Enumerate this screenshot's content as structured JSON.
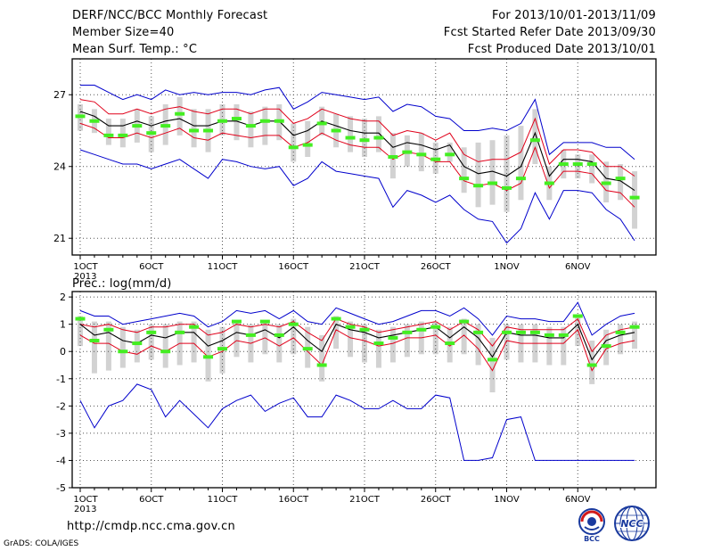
{
  "header": {
    "title": "DERF/NCC/BCC Monthly Forecast",
    "member": "Member Size=40",
    "var1": "Mean Surf. Temp.: °C",
    "period": "For 2013/10/01-2013/11/09",
    "started": "Fcst Started Refer Date 2013/09/30",
    "produced": "Fcst Produced Date 2013/10/01"
  },
  "panel2_title": "Prec.: log(mm/d)",
  "x_ticks": [
    "1OCT",
    "6OCT",
    "11OCT",
    "16OCT",
    "21OCT",
    "26OCT",
    "1NOV",
    "6NOV"
  ],
  "x_year": "2013",
  "footer": {
    "url": "http://cmdp.ncc.cma.gov.cn",
    "credit": "GrADS: COLA/IGES"
  },
  "logos": {
    "left": "BCC",
    "right": "NCC"
  },
  "colors": {
    "blue": "#0000cc",
    "red": "#e0001a",
    "green": "#44ee22",
    "gray": "#d2d2d2",
    "mean": "#000000"
  },
  "chart_data": [
    {
      "type": "line",
      "title": "Mean Surf. Temp.: °C",
      "ylim": [
        20.3,
        28.5
      ],
      "yticks": [
        21,
        24,
        27
      ],
      "days": 39,
      "grid": true,
      "series": [
        {
          "values": [
            26.1,
            25.9,
            25.3,
            25.3,
            25.7,
            25.4,
            25.7,
            26.2,
            25.5,
            25.5,
            25.9,
            26.0,
            25.7,
            25.9,
            25.9,
            24.8,
            24.9,
            25.8,
            25.5,
            25.2,
            25.1,
            25.2,
            24.4,
            24.6,
            24.5,
            24.3,
            24.5,
            23.5,
            23.2,
            23.3,
            23.1,
            23.5,
            25.1,
            23.3,
            24.1,
            24.1,
            24.1,
            23.3,
            23.5,
            22.7
          ]
        },
        {
          "values": [
            27.4,
            27.4,
            27.1,
            26.8,
            27.0,
            26.8,
            27.2,
            27.0,
            27.1,
            27.0,
            27.1,
            27.1,
            27.0,
            27.2,
            27.3,
            26.4,
            26.7,
            27.1,
            27.0,
            26.9,
            26.8,
            26.9,
            26.3,
            26.6,
            26.5,
            26.1,
            26.0,
            25.5,
            25.5,
            25.6,
            25.5,
            25.8,
            26.8,
            24.5,
            25.0,
            25.0,
            25.0,
            24.8,
            24.8,
            24.3
          ]
        },
        {
          "values": [
            24.7,
            24.5,
            24.3,
            24.1,
            24.1,
            23.9,
            24.1,
            24.3,
            23.9,
            23.5,
            24.3,
            24.2,
            24.0,
            23.9,
            24.0,
            23.2,
            23.5,
            24.2,
            23.8,
            23.7,
            23.6,
            23.5,
            22.3,
            23.0,
            22.8,
            22.5,
            22.8,
            22.2,
            21.8,
            21.7,
            20.8,
            21.4,
            22.9,
            21.8,
            23.0,
            23.0,
            22.9,
            22.2,
            21.8,
            20.9
          ]
        },
        {
          "values": [
            26.8,
            26.7,
            26.2,
            26.2,
            26.4,
            26.2,
            26.4,
            26.5,
            26.3,
            26.2,
            26.4,
            26.4,
            26.2,
            26.4,
            26.4,
            25.8,
            26.0,
            26.4,
            26.2,
            26.0,
            25.9,
            25.9,
            25.3,
            25.5,
            25.4,
            25.1,
            25.4,
            24.5,
            24.2,
            24.3,
            24.3,
            24.6,
            26.0,
            24.1,
            24.7,
            24.7,
            24.6,
            24.0,
            24.0,
            23.6
          ]
        },
        {
          "values": [
            25.8,
            25.6,
            25.2,
            25.2,
            25.4,
            25.2,
            25.4,
            25.6,
            25.2,
            25.1,
            25.4,
            25.3,
            25.2,
            25.3,
            25.3,
            24.8,
            25.0,
            25.4,
            25.1,
            24.9,
            24.8,
            24.8,
            24.3,
            24.6,
            24.5,
            24.2,
            24.2,
            23.4,
            23.2,
            23.3,
            23.0,
            23.3,
            24.8,
            23.1,
            23.8,
            23.8,
            23.7,
            23.0,
            22.9,
            22.3
          ]
        },
        {
          "values": [
            26.3,
            26.1,
            25.7,
            25.7,
            25.9,
            25.7,
            25.9,
            26.0,
            25.7,
            25.7,
            25.9,
            25.9,
            25.7,
            25.9,
            25.9,
            25.3,
            25.5,
            25.9,
            25.7,
            25.5,
            25.4,
            25.4,
            24.8,
            25.0,
            24.9,
            24.7,
            24.9,
            24.0,
            23.7,
            23.8,
            23.6,
            24.0,
            25.4,
            23.6,
            24.3,
            24.3,
            24.2,
            23.5,
            23.4,
            23.0
          ]
        },
        {
          "values": [
            25.5,
            25.4,
            24.9,
            24.8,
            25.0,
            24.6,
            24.9,
            25.3,
            24.8,
            24.6,
            25.3,
            25.1,
            24.8,
            24.9,
            25.1,
            24.2,
            24.4,
            25.3,
            24.8,
            24.6,
            24.4,
            24.6,
            23.5,
            24.0,
            23.8,
            23.7,
            24.2,
            22.9,
            22.3,
            22.4,
            22.1,
            22.6,
            24.1,
            22.6,
            23.5,
            23.5,
            23.3,
            22.5,
            22.6,
            21.4
          ]
        },
        {
          "values": [
            26.6,
            26.4,
            26.0,
            26.0,
            26.4,
            26.1,
            26.6,
            26.9,
            26.4,
            26.4,
            26.6,
            26.6,
            26.3,
            26.5,
            26.6,
            25.8,
            25.9,
            26.5,
            26.2,
            26.1,
            26.0,
            26.1,
            25.4,
            25.3,
            25.4,
            25.0,
            25.0,
            24.8,
            25.0,
            25.1,
            25.3,
            25.7,
            26.4,
            24.0,
            24.7,
            24.5,
            24.5,
            24.2,
            24.1,
            23.8
          ]
        }
      ],
      "legend": []
    },
    {
      "type": "line",
      "title": "Prec.: log(mm/d)",
      "ylim": [
        -5,
        2.2
      ],
      "yticks": [
        -5,
        -4,
        -3,
        -2,
        -1,
        0,
        1,
        2
      ],
      "days": 39,
      "grid": true,
      "series": [
        {
          "values": [
            1.2,
            0.4,
            0.8,
            0.0,
            0.3,
            0.7,
            0.0,
            0.7,
            0.9,
            -0.2,
            0.1,
            1.1,
            0.6,
            1.1,
            0.6,
            1.0,
            0.1,
            -0.5,
            1.2,
            0.9,
            0.8,
            0.3,
            0.5,
            0.7,
            0.8,
            0.9,
            0.3,
            1.1,
            0.7,
            -0.3,
            0.7,
            0.7,
            0.7,
            0.6,
            0.6,
            1.3,
            -0.5,
            0.2,
            0.7,
            0.9
          ]
        },
        {
          "values": [
            1.5,
            1.3,
            1.3,
            1.0,
            1.1,
            1.2,
            1.3,
            1.4,
            1.3,
            0.9,
            1.1,
            1.5,
            1.4,
            1.5,
            1.2,
            1.5,
            1.1,
            1.0,
            1.6,
            1.4,
            1.2,
            1.0,
            1.1,
            1.3,
            1.5,
            1.5,
            1.3,
            1.6,
            1.2,
            0.6,
            1.3,
            1.2,
            1.2,
            1.1,
            1.1,
            1.8,
            0.6,
            1.0,
            1.3,
            1.4
          ]
        },
        {
          "values": [
            -1.8,
            -2.8,
            -2.0,
            -1.8,
            -1.2,
            -1.4,
            -2.4,
            -1.8,
            -2.3,
            -2.8,
            -2.1,
            -1.8,
            -1.6,
            -2.2,
            -1.9,
            -1.7,
            -2.4,
            -2.4,
            -1.6,
            -1.8,
            -2.1,
            -2.1,
            -1.8,
            -2.1,
            -2.1,
            -1.6,
            -1.7,
            -4.0,
            -4.0,
            -3.9,
            -2.5,
            -2.4,
            -4.0,
            -4.0,
            -4.0,
            -4.0,
            -4.0,
            -4.0,
            -4.0,
            -4.0
          ]
        },
        {
          "values": [
            1.0,
            0.9,
            1.0,
            0.8,
            0.7,
            0.9,
            0.9,
            1.0,
            1.0,
            0.6,
            0.7,
            1.0,
            0.9,
            1.0,
            0.9,
            1.1,
            0.7,
            0.4,
            1.2,
            1.0,
            0.9,
            0.7,
            0.8,
            0.9,
            1.0,
            1.1,
            0.8,
            1.1,
            0.8,
            0.2,
            0.9,
            0.8,
            0.8,
            0.8,
            0.8,
            1.2,
            0.0,
            0.6,
            0.8,
            0.9
          ]
        },
        {
          "values": [
            0.6,
            0.3,
            0.3,
            0.0,
            -0.1,
            0.2,
            0.0,
            0.3,
            0.3,
            -0.2,
            0.0,
            0.4,
            0.3,
            0.5,
            0.2,
            0.5,
            0.0,
            -0.5,
            0.8,
            0.5,
            0.4,
            0.2,
            0.3,
            0.5,
            0.5,
            0.6,
            0.2,
            0.6,
            0.1,
            -0.7,
            0.4,
            0.3,
            0.3,
            0.3,
            0.3,
            0.8,
            -0.7,
            0.1,
            0.3,
            0.4
          ]
        },
        {
          "values": [
            1.0,
            0.6,
            0.7,
            0.4,
            0.3,
            0.6,
            0.5,
            0.7,
            0.7,
            0.2,
            0.4,
            0.7,
            0.6,
            0.8,
            0.5,
            0.9,
            0.4,
            0.0,
            1.0,
            0.8,
            0.7,
            0.5,
            0.6,
            0.7,
            0.8,
            0.9,
            0.5,
            0.9,
            0.5,
            -0.2,
            0.7,
            0.6,
            0.6,
            0.5,
            0.5,
            1.0,
            -0.3,
            0.4,
            0.6,
            0.7
          ]
        },
        {
          "values": [
            0.2,
            -0.8,
            -0.7,
            -0.6,
            -0.4,
            -0.3,
            -0.6,
            -0.5,
            -0.4,
            -1.1,
            -0.8,
            -0.2,
            -0.4,
            -0.1,
            -0.4,
            -0.1,
            -0.6,
            -1.1,
            0.1,
            -0.2,
            -0.4,
            -0.6,
            -0.4,
            -0.2,
            -0.1,
            -0.1,
            -0.4,
            -0.1,
            -0.5,
            -1.5,
            -0.3,
            -0.4,
            -0.4,
            -0.5,
            -0.5,
            0.2,
            -1.2,
            -0.5,
            -0.1,
            0.1
          ]
        },
        {
          "values": [
            1.3,
            1.1,
            1.1,
            0.9,
            0.8,
            1.0,
            1.0,
            1.1,
            1.1,
            0.8,
            0.9,
            1.1,
            1.0,
            1.1,
            1.0,
            1.2,
            0.9,
            0.6,
            1.3,
            1.1,
            1.0,
            0.8,
            0.9,
            1.0,
            1.1,
            1.1,
            0.9,
            1.2,
            1.0,
            0.5,
            1.0,
            1.0,
            1.0,
            0.9,
            0.9,
            1.3,
            0.4,
            0.8,
            1.0,
            1.1
          ]
        }
      ],
      "legend": []
    }
  ]
}
